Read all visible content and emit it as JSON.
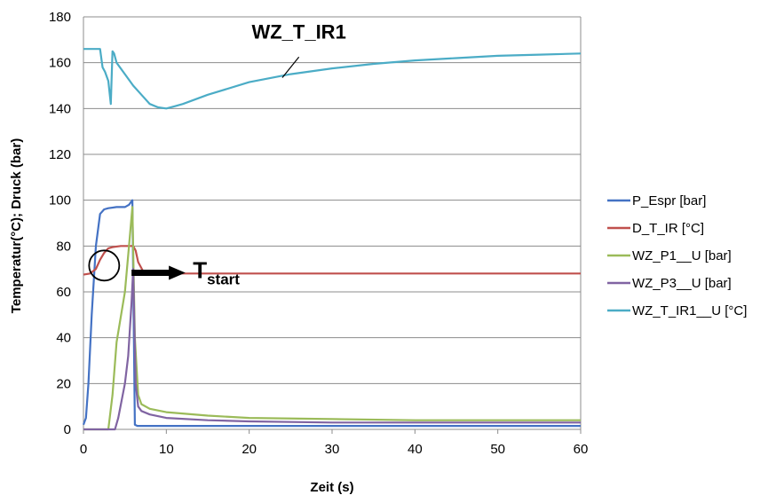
{
  "chart_data": {
    "type": "line",
    "xlabel": "Zeit (s)",
    "ylabel": "Temperatur(°C); Druck (bar)",
    "xlim": [
      0,
      60
    ],
    "ylim": [
      0,
      180
    ],
    "xticks": [
      0,
      10,
      20,
      30,
      40,
      50,
      60
    ],
    "yticks": [
      0,
      20,
      40,
      60,
      80,
      100,
      120,
      140,
      160,
      180
    ],
    "grid": "horizontal",
    "legend_position": "right",
    "series": [
      {
        "name": "P_Espr [bar]",
        "color": "#4472C4",
        "x": [
          0,
          0.3,
          0.6,
          1.0,
          1.5,
          2.0,
          2.5,
          3.0,
          4.0,
          5.0,
          5.5,
          5.9,
          6.05,
          6.2,
          6.5,
          8,
          10,
          20,
          30,
          40,
          50,
          60
        ],
        "y": [
          2,
          5,
          20,
          50,
          80,
          94,
          96,
          96.5,
          97,
          97,
          98,
          100,
          50,
          2,
          1.5,
          1.5,
          1.5,
          1.5,
          1.5,
          1.5,
          1.5,
          1.5
        ]
      },
      {
        "name": "D_T_IR [°C]",
        "color": "#C0504D",
        "x": [
          0,
          0.8,
          1.5,
          2.0,
          2.5,
          3.0,
          3.5,
          4.5,
          5.5,
          6.0,
          6.3,
          6.6,
          7.2,
          8,
          10,
          20,
          30,
          40,
          50,
          60
        ],
        "y": [
          67.5,
          68,
          70,
          74,
          77,
          79,
          79.5,
          80,
          80,
          80,
          78,
          73,
          69,
          68,
          68,
          68,
          68,
          68,
          68,
          68
        ]
      },
      {
        "name": "WZ_P1__U [bar]",
        "color": "#9BBB59",
        "x": [
          0,
          3.0,
          3.5,
          4.0,
          5.0,
          5.5,
          5.9,
          6.2,
          6.6,
          7,
          8,
          10,
          15,
          20,
          30,
          40,
          50,
          60
        ],
        "y": [
          0,
          0,
          15,
          38,
          60,
          80,
          97,
          40,
          15,
          11,
          9,
          7.5,
          6,
          5,
          4.5,
          4,
          4,
          4
        ]
      },
      {
        "name": "WZ_P3__U [bar]",
        "color": "#8064A2",
        "x": [
          0,
          3.8,
          4.2,
          5.0,
          5.4,
          5.8,
          6.0,
          6.3,
          6.6,
          7,
          8,
          10,
          15,
          20,
          30,
          40,
          50,
          60
        ],
        "y": [
          0,
          0,
          5,
          20,
          32,
          55,
          70,
          20,
          10,
          8,
          6.5,
          5,
          4,
          3.5,
          3,
          3,
          3,
          3
        ]
      },
      {
        "name": "WZ_T_IR1__U [°C]",
        "color": "#4BACC6",
        "x": [
          0,
          2.0,
          2.3,
          2.6,
          3.0,
          3.3,
          3.5,
          3.7,
          4.0,
          5,
          6,
          7,
          8,
          9,
          10,
          11,
          12,
          15,
          20,
          25,
          30,
          35,
          40,
          45,
          50,
          55,
          60
        ],
        "y": [
          166,
          166,
          158,
          156,
          152,
          142,
          165,
          164,
          160,
          155,
          150,
          146,
          142,
          140.5,
          140,
          141,
          142,
          146,
          151.5,
          155,
          157.5,
          159.5,
          161,
          162,
          163,
          163.5,
          164
        ]
      }
    ],
    "annotations": {
      "series_label": "WZ_T_IR1",
      "tstart_main": "T",
      "tstart_sub": "start"
    }
  }
}
